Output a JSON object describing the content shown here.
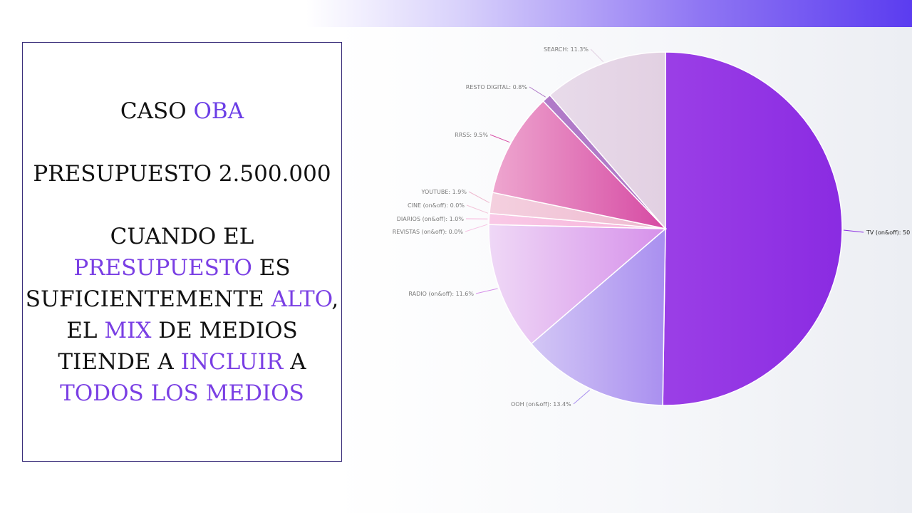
{
  "slide": {
    "line1_prefix": "CASO",
    "line1_accent": "OBA",
    "line2": "PRESUPUESTO 2.500.000",
    "para": [
      [
        {
          "t": "CUANDO EL",
          "a": false
        }
      ],
      [
        {
          "t": "PRESUPUESTO",
          "a": true
        },
        {
          "t": " ES",
          "a": false
        }
      ],
      [
        {
          "t": "SUFICIENTEMENTE ",
          "a": false
        },
        {
          "t": "ALTO",
          "a": true
        },
        {
          "t": ",",
          "a": false
        }
      ],
      [
        {
          "t": "EL ",
          "a": false
        },
        {
          "t": "MIX",
          "a": true
        },
        {
          "t": " DE MEDIOS",
          "a": false
        }
      ],
      [
        {
          "t": "TIENDE A ",
          "a": false
        },
        {
          "t": "INCLUIR",
          "a": true
        },
        {
          "t": " A",
          "a": false
        }
      ],
      [
        {
          "t": "TODOS LOS MEDIOS",
          "a": true
        }
      ]
    ],
    "colors": {
      "accent": "#7a3fe4",
      "text": "#111111",
      "border": "#3a2e7a"
    }
  },
  "chart_data": {
    "type": "pie",
    "title": "",
    "slices": [
      {
        "label": "TV (on&off): 50",
        "value": 50.0,
        "color": "#8a2be2",
        "color2": "#9b3fe6"
      },
      {
        "label": "OOH (on&off): 13.4%",
        "value": 13.4,
        "color": "#a98ff0",
        "color2": "#d3c7f5"
      },
      {
        "label": "RADIO (on&off): 11.6%",
        "value": 11.6,
        "color": "#d690ea",
        "color2": "#efd8f6"
      },
      {
        "label": "REVISTAS (on&off): 0.0%",
        "value": 0.0,
        "color": "#f7c3e4",
        "color2": "#f7c3e4"
      },
      {
        "label": "DIARIOS (on&off): 1.0%",
        "value": 1.0,
        "color": "#f7b2da",
        "color2": "#f9c9e6"
      },
      {
        "label": "CINE (on&off): 0.0%",
        "value": 0.0,
        "color": "#f3c4d9",
        "color2": "#f3c4d9"
      },
      {
        "label": "YOUTUBE: 1.9%",
        "value": 1.9,
        "color": "#eeb9cf",
        "color2": "#f4d0df"
      },
      {
        "label": "RRSS: 9.5%",
        "value": 9.5,
        "color": "#d64aa3",
        "color2": "#eea6cf"
      },
      {
        "label": "RESTO DIGITAL: 0.8%",
        "value": 0.8,
        "color": "#b07ac8",
        "color2": "#b07ac8"
      },
      {
        "label": "SEARCH: 11.3%",
        "value": 11.3,
        "color": "#e2d0e2",
        "color2": "#e8dbea"
      }
    ]
  }
}
